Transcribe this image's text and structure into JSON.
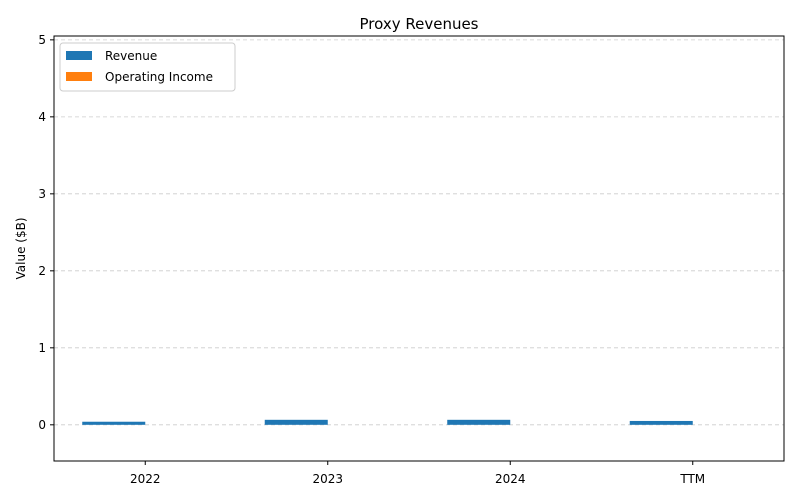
{
  "chart_data": {
    "type": "bar",
    "title": "Proxy Revenues",
    "xlabel": "",
    "ylabel": "Value ($B)",
    "categories": [
      "2022",
      "2023",
      "2024",
      "TTM"
    ],
    "series": [
      {
        "name": "Revenue",
        "color": "#1f77b4",
        "values": [
          0.04,
          0.065,
          0.065,
          0.05
        ]
      },
      {
        "name": "Operating Income",
        "color": "#ff7f0e",
        "values": [
          0,
          0,
          0,
          0
        ]
      }
    ],
    "ylim": [
      -0.47,
      5.05
    ],
    "yticks": [
      "0",
      "1",
      "2",
      "3",
      "4",
      "5"
    ],
    "grid": "y-dashed",
    "legend": "top-left"
  }
}
